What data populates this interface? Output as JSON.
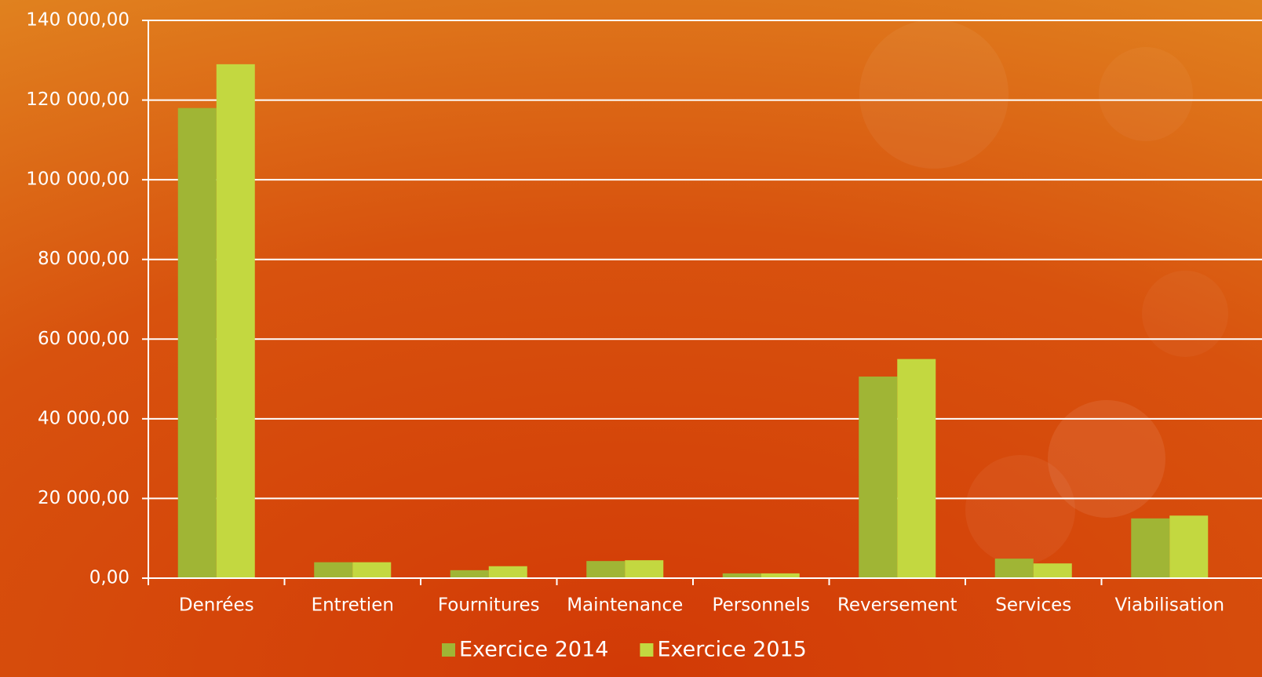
{
  "chart_data": {
    "type": "bar",
    "categories": [
      "Denrées",
      "Entretien",
      "Fournitures",
      "Maintenance",
      "Personnels",
      "Reversement",
      "Services",
      "Viabilisation"
    ],
    "series": [
      {
        "name": "Exercice 2014",
        "color": "#a0b535",
        "values": [
          118000,
          4000,
          2000,
          4300,
          1200,
          50600,
          4900,
          15000
        ]
      },
      {
        "name": "Exercice 2015",
        "color": "#c3d840",
        "values": [
          129000,
          4000,
          3000,
          4500,
          1200,
          55000,
          3700,
          15700
        ]
      }
    ],
    "ylim": [
      0,
      140000
    ],
    "yticks": [
      {
        "value": 0,
        "label": "0,00"
      },
      {
        "value": 20000,
        "label": "20 000,00"
      },
      {
        "value": 40000,
        "label": "40 000,00"
      },
      {
        "value": 60000,
        "label": "60 000,00"
      },
      {
        "value": 80000,
        "label": "80 000,00"
      },
      {
        "value": 100000,
        "label": "100 000,00"
      },
      {
        "value": 120000,
        "label": "120 000,00"
      },
      {
        "value": 140000,
        "label": "140 000,00"
      }
    ],
    "grid": true,
    "legend": "bottom"
  }
}
